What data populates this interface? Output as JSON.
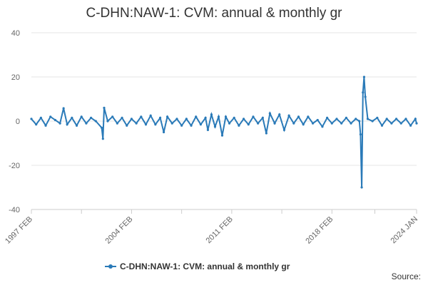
{
  "chart_data": {
    "type": "line",
    "title": "C-DHN:NAW-1: CVM: annual & monthly gr",
    "xlabel": "",
    "ylabel": "",
    "x_range": [
      "1997 FEB",
      "2024 JAN"
    ],
    "ylim": [
      -40,
      40
    ],
    "y_ticks": [
      "40",
      "20",
      "0",
      "-20",
      "-40"
    ],
    "x_ticks": [
      "1997 FEB",
      "2004 FEB",
      "2011 FEB",
      "2018 FEB",
      "2024 JAN"
    ],
    "grid": "horizontal",
    "legend_position": "bottom",
    "colors": {
      "series": "#2a7ab8",
      "grid": "#e6e6e6",
      "axis": "#cccccc"
    },
    "series": [
      {
        "name": "C-DHN:NAW-1: CVM: annual & monthly gr",
        "points": [
          [
            "1997-02",
            1.0
          ],
          [
            "1997-06",
            -1.5
          ],
          [
            "1997-10",
            1.5
          ],
          [
            "1998-02",
            -2.0
          ],
          [
            "1998-06",
            2.0
          ],
          [
            "1998-10",
            0.5
          ],
          [
            "1999-02",
            -1.0
          ],
          [
            "1999-05",
            5.8
          ],
          [
            "1999-08",
            -1.5
          ],
          [
            "1999-12",
            1.5
          ],
          [
            "2000-04",
            -2.0
          ],
          [
            "2000-08",
            2.0
          ],
          [
            "2000-12",
            -1.0
          ],
          [
            "2001-04",
            1.5
          ],
          [
            "2001-08",
            0.0
          ],
          [
            "2002-01",
            -3.0
          ],
          [
            "2002-02",
            -8.0
          ],
          [
            "2002-03",
            6.0
          ],
          [
            "2002-06",
            0.0
          ],
          [
            "2002-10",
            2.0
          ],
          [
            "2003-02",
            -1.0
          ],
          [
            "2003-06",
            1.5
          ],
          [
            "2003-10",
            -2.0
          ],
          [
            "2004-02",
            1.0
          ],
          [
            "2004-06",
            -1.0
          ],
          [
            "2004-10",
            2.0
          ],
          [
            "2005-02",
            -1.5
          ],
          [
            "2005-06",
            2.5
          ],
          [
            "2005-10",
            -1.5
          ],
          [
            "2006-02",
            1.5
          ],
          [
            "2006-05",
            -5.0
          ],
          [
            "2006-08",
            2.0
          ],
          [
            "2006-12",
            -1.0
          ],
          [
            "2007-04",
            1.0
          ],
          [
            "2007-08",
            -2.0
          ],
          [
            "2007-12",
            1.0
          ],
          [
            "2008-04",
            -2.0
          ],
          [
            "2008-08",
            2.0
          ],
          [
            "2008-12",
            -1.5
          ],
          [
            "2009-04",
            1.5
          ],
          [
            "2009-06",
            -4.0
          ],
          [
            "2009-09",
            3.0
          ],
          [
            "2009-12",
            -2.5
          ],
          [
            "2010-03",
            2.0
          ],
          [
            "2010-06",
            -6.5
          ],
          [
            "2010-09",
            2.0
          ],
          [
            "2010-12",
            -1.0
          ],
          [
            "2011-04",
            1.5
          ],
          [
            "2011-08",
            -2.0
          ],
          [
            "2011-12",
            1.0
          ],
          [
            "2012-04",
            -1.5
          ],
          [
            "2012-08",
            2.0
          ],
          [
            "2012-12",
            -1.0
          ],
          [
            "2013-04",
            1.5
          ],
          [
            "2013-07",
            -5.5
          ],
          [
            "2013-10",
            3.5
          ],
          [
            "2014-02",
            -1.0
          ],
          [
            "2014-06",
            3.0
          ],
          [
            "2014-10",
            -4.0
          ],
          [
            "2015-02",
            2.5
          ],
          [
            "2015-06",
            -1.0
          ],
          [
            "2015-10",
            2.0
          ],
          [
            "2016-02",
            -1.5
          ],
          [
            "2016-06",
            2.0
          ],
          [
            "2016-10",
            -1.0
          ],
          [
            "2017-02",
            0.5
          ],
          [
            "2017-06",
            -2.5
          ],
          [
            "2017-10",
            1.5
          ],
          [
            "2018-02",
            -1.0
          ],
          [
            "2018-06",
            1.0
          ],
          [
            "2018-10",
            -1.0
          ],
          [
            "2019-02",
            1.5
          ],
          [
            "2019-06",
            -1.0
          ],
          [
            "2019-10",
            1.0
          ],
          [
            "2020-01",
            0.0
          ],
          [
            "2020-02",
            -6.0
          ],
          [
            "2020-03",
            -30.0
          ],
          [
            "2020-04",
            13.0
          ],
          [
            "2020-05",
            20.0
          ],
          [
            "2020-06",
            11.0
          ],
          [
            "2020-08",
            1.0
          ],
          [
            "2020-12",
            0.0
          ],
          [
            "2021-04",
            1.5
          ],
          [
            "2021-08",
            -2.0
          ],
          [
            "2021-12",
            1.0
          ],
          [
            "2022-04",
            -1.0
          ],
          [
            "2022-08",
            1.0
          ],
          [
            "2022-12",
            -1.0
          ],
          [
            "2023-04",
            1.0
          ],
          [
            "2023-08",
            -2.0
          ],
          [
            "2023-12",
            1.0
          ],
          [
            "2024-01",
            -1.0
          ]
        ]
      }
    ]
  },
  "footer": {
    "source_label": "Source:"
  }
}
